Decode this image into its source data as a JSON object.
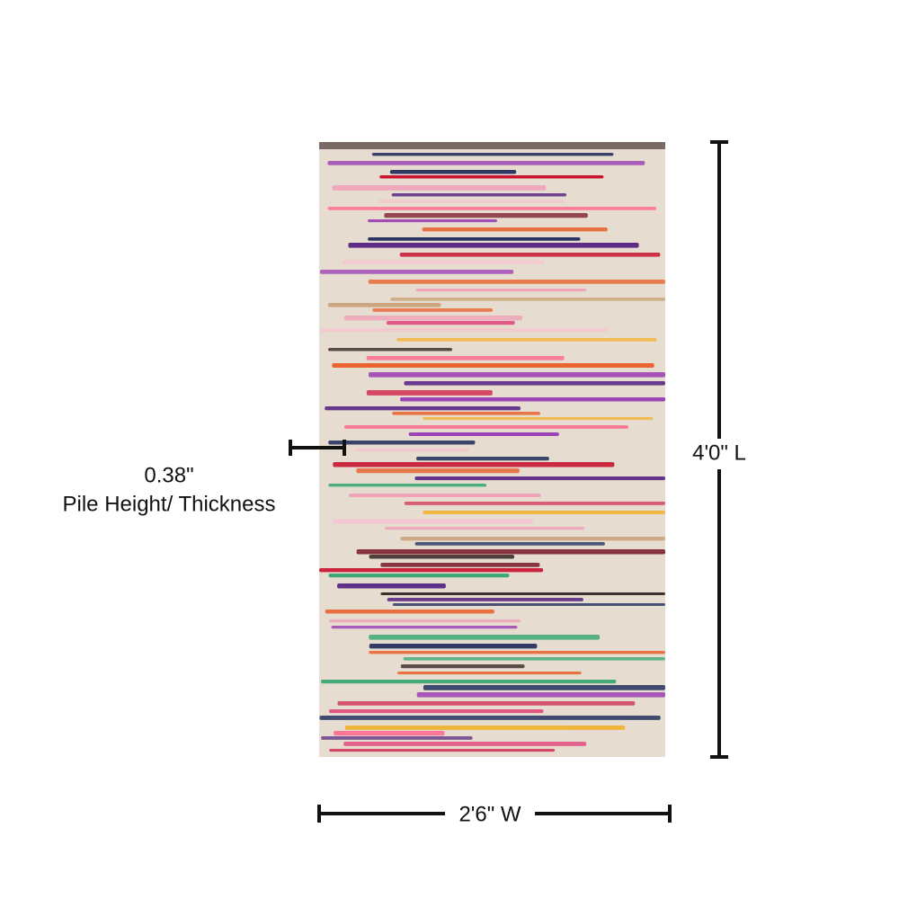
{
  "annotations": {
    "thickness": {
      "value": "0.38\"",
      "label": "Pile Height/ Thickness"
    },
    "length": "4'0\" L",
    "width": "2'6\" W"
  }
}
